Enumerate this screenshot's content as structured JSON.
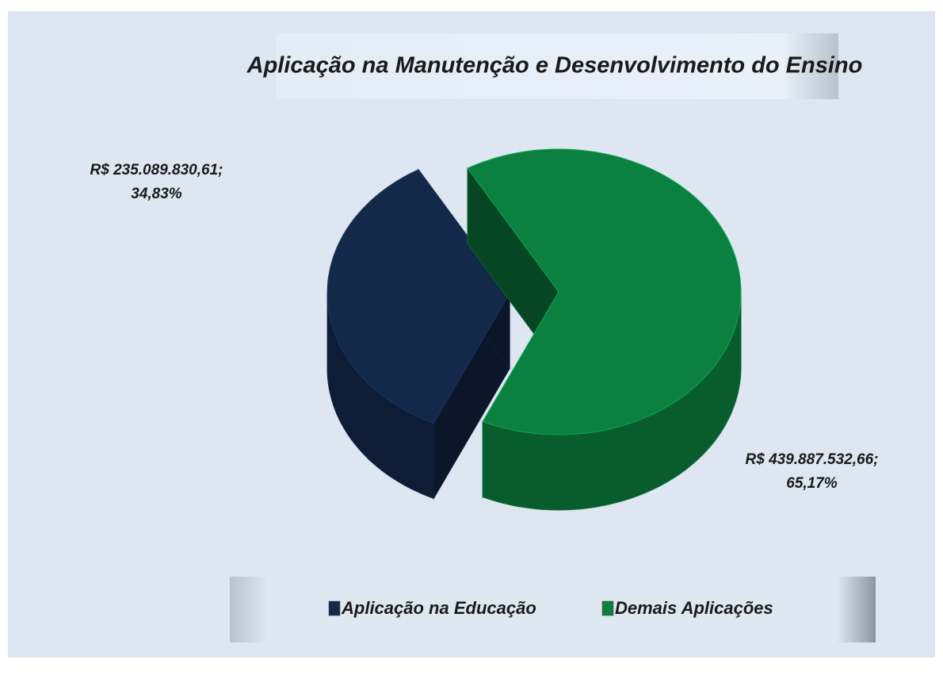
{
  "chart_data": {
    "type": "pie3d",
    "title": "Aplicação na Manutenção e Desenvolvimento do Ensino",
    "categories": [
      "Aplicação na Educação",
      "Demais Aplicações"
    ],
    "values": [
      235089830.61,
      439887532.66
    ],
    "value_labels": [
      "R$ 235.089.830,61; 34,83%",
      "R$ 439.887.532,66; 65,17%"
    ],
    "colors": [
      "#14284a",
      "#0b8040"
    ],
    "legend": "bottom"
  }
}
